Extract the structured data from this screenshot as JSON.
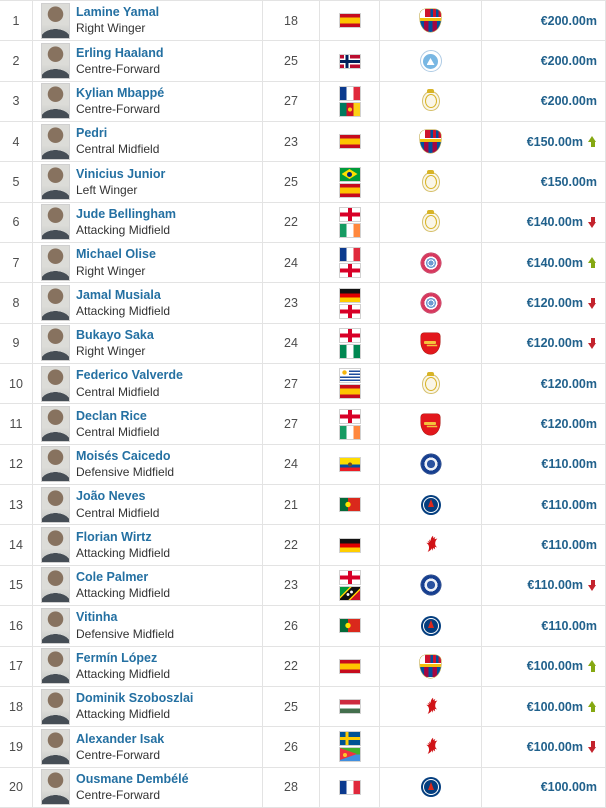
{
  "accent_colors": {
    "link_blue": "#2470a2",
    "value_blue": "#21618c",
    "trend_up_green": "#85a812",
    "trend_down_red": "#c3232d",
    "row_border": "#e3e3e3"
  },
  "rows": [
    {
      "rank": "1",
      "name": "Lamine Yamal",
      "position": "Right Winger",
      "age": "18",
      "flags": [
        "spain"
      ],
      "club": "barcelona",
      "value": "€200.00m",
      "trend": "none"
    },
    {
      "rank": "2",
      "name": "Erling Haaland",
      "position": "Centre-Forward",
      "age": "25",
      "flags": [
        "norway"
      ],
      "club": "mancity",
      "value": "€200.00m",
      "trend": "none"
    },
    {
      "rank": "3",
      "name": "Kylian Mbappé",
      "position": "Centre-Forward",
      "age": "27",
      "flags": [
        "france",
        "cameroon"
      ],
      "club": "realmadrid",
      "value": "€200.00m",
      "trend": "none"
    },
    {
      "rank": "4",
      "name": "Pedri",
      "position": "Central Midfield",
      "age": "23",
      "flags": [
        "spain"
      ],
      "club": "barcelona",
      "value": "€150.00m",
      "trend": "up"
    },
    {
      "rank": "5",
      "name": "Vinicius Junior",
      "position": "Left Winger",
      "age": "25",
      "flags": [
        "brazil",
        "spain"
      ],
      "club": "realmadrid",
      "value": "€150.00m",
      "trend": "none"
    },
    {
      "rank": "6",
      "name": "Jude Bellingham",
      "position": "Attacking Midfield",
      "age": "22",
      "flags": [
        "england",
        "ireland"
      ],
      "club": "realmadrid",
      "value": "€140.00m",
      "trend": "down"
    },
    {
      "rank": "7",
      "name": "Michael Olise",
      "position": "Right Winger",
      "age": "24",
      "flags": [
        "france",
        "england"
      ],
      "club": "bayern",
      "value": "€140.00m",
      "trend": "up"
    },
    {
      "rank": "8",
      "name": "Jamal Musiala",
      "position": "Attacking Midfield",
      "age": "23",
      "flags": [
        "germany",
        "england"
      ],
      "club": "bayern",
      "value": "€120.00m",
      "trend": "down"
    },
    {
      "rank": "9",
      "name": "Bukayo Saka",
      "position": "Right Winger",
      "age": "24",
      "flags": [
        "england",
        "nigeria"
      ],
      "club": "arsenal",
      "value": "€120.00m",
      "trend": "down"
    },
    {
      "rank": "10",
      "name": "Federico Valverde",
      "position": "Central Midfield",
      "age": "27",
      "flags": [
        "uruguay",
        "spain"
      ],
      "club": "realmadrid",
      "value": "€120.00m",
      "trend": "none"
    },
    {
      "rank": "11",
      "name": "Declan Rice",
      "position": "Central Midfield",
      "age": "27",
      "flags": [
        "england",
        "ireland"
      ],
      "club": "arsenal",
      "value": "€120.00m",
      "trend": "none"
    },
    {
      "rank": "12",
      "name": "Moisés Caicedo",
      "position": "Defensive Midfield",
      "age": "24",
      "flags": [
        "ecuador"
      ],
      "club": "chelsea",
      "value": "€110.00m",
      "trend": "none"
    },
    {
      "rank": "13",
      "name": "João Neves",
      "position": "Central Midfield",
      "age": "21",
      "flags": [
        "portugal"
      ],
      "club": "psg",
      "value": "€110.00m",
      "trend": "none"
    },
    {
      "rank": "14",
      "name": "Florian Wirtz",
      "position": "Attacking Midfield",
      "age": "22",
      "flags": [
        "germany"
      ],
      "club": "liverpool",
      "value": "€110.00m",
      "trend": "none"
    },
    {
      "rank": "15",
      "name": "Cole Palmer",
      "position": "Attacking Midfield",
      "age": "23",
      "flags": [
        "england",
        "stkitts"
      ],
      "club": "chelsea",
      "value": "€110.00m",
      "trend": "down"
    },
    {
      "rank": "16",
      "name": "Vitinha",
      "position": "Defensive Midfield",
      "age": "26",
      "flags": [
        "portugal"
      ],
      "club": "psg",
      "value": "€110.00m",
      "trend": "none"
    },
    {
      "rank": "17",
      "name": "Fermín López",
      "position": "Attacking Midfield",
      "age": "22",
      "flags": [
        "spain"
      ],
      "club": "barcelona",
      "value": "€100.00m",
      "trend": "up"
    },
    {
      "rank": "18",
      "name": "Dominik Szoboszlai",
      "position": "Attacking Midfield",
      "age": "25",
      "flags": [
        "hungary"
      ],
      "club": "liverpool",
      "value": "€100.00m",
      "trend": "up"
    },
    {
      "rank": "19",
      "name": "Alexander Isak",
      "position": "Centre-Forward",
      "age": "26",
      "flags": [
        "sweden",
        "eritrea"
      ],
      "club": "liverpool",
      "value": "€100.00m",
      "trend": "down"
    },
    {
      "rank": "20",
      "name": "Ousmane Dembélé",
      "position": "Centre-Forward",
      "age": "28",
      "flags": [
        "france"
      ],
      "club": "psg",
      "value": "€100.00m",
      "trend": "none"
    }
  ]
}
